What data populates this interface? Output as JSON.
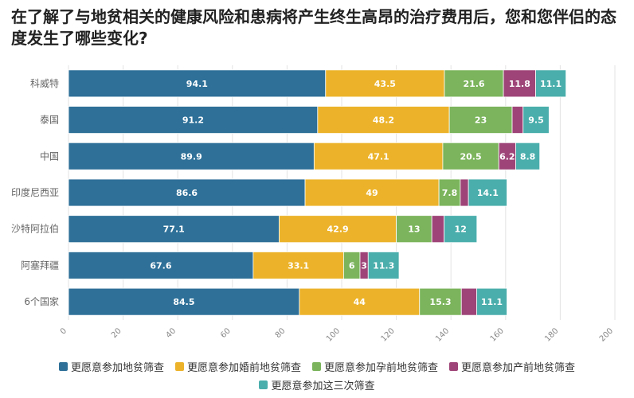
{
  "chart_data": {
    "type": "bar",
    "orientation": "horizontal",
    "stacked": true,
    "title": "在了解了与地贫相关的健康风险和患病将产生终生高昂的治疗费用后，您和您伴侣的态度发生了哪些变化?",
    "categories": [
      "科威特",
      "泰国",
      "中国",
      "印度尼西亚",
      "沙特阿拉伯",
      "阿塞拜疆",
      "6个国家"
    ],
    "series": [
      {
        "name": "更愿意参加地贫筛查",
        "color": "#2e7098",
        "values": [
          94.1,
          91.2,
          89.9,
          86.6,
          77.1,
          67.6,
          84.5
        ]
      },
      {
        "name": "更愿意参加婚前地贫筛查",
        "color": "#ecb32a",
        "values": [
          43.5,
          48.2,
          47.1,
          49,
          42.9,
          33.1,
          44
        ]
      },
      {
        "name": "更愿意参加孕前地贫筛查",
        "color": "#7bb45c",
        "values": [
          21.6,
          23,
          20.5,
          7.8,
          13,
          6,
          15.3
        ]
      },
      {
        "name": "更愿意参加产前地贫筛查",
        "color": "#9e4478",
        "values": [
          11.8,
          4,
          6.2,
          3,
          4.5,
          3,
          5.6
        ]
      },
      {
        "name": "更愿意参加这三次筛查",
        "color": "#4aaeac",
        "values": [
          11.1,
          9.5,
          8.8,
          14.1,
          12,
          11.3,
          11.1
        ]
      }
    ],
    "data_labels": [
      [
        "94.1",
        "43.5",
        "21.6",
        "11.8",
        "11.1"
      ],
      [
        "91.2",
        "48.2",
        "23",
        "",
        "9.5"
      ],
      [
        "89.9",
        "47.1",
        "20.5",
        "6.2",
        "8.8"
      ],
      [
        "86.6",
        "49",
        "7.8",
        "",
        "14.1"
      ],
      [
        "77.1",
        "42.9",
        "13",
        "",
        "12"
      ],
      [
        "67.6",
        "33.1",
        "6",
        "3",
        "11.3"
      ],
      [
        "84.5",
        "44",
        "15.3",
        "",
        "11.1"
      ]
    ],
    "x_ticks": [
      "0",
      "20",
      "40",
      "60",
      "80",
      "100",
      "120",
      "140",
      "160",
      "180",
      "200"
    ],
    "xlim": [
      0,
      200
    ],
    "grid": true,
    "xlabel": "",
    "ylabel": "",
    "legend_position": "bottom"
  }
}
